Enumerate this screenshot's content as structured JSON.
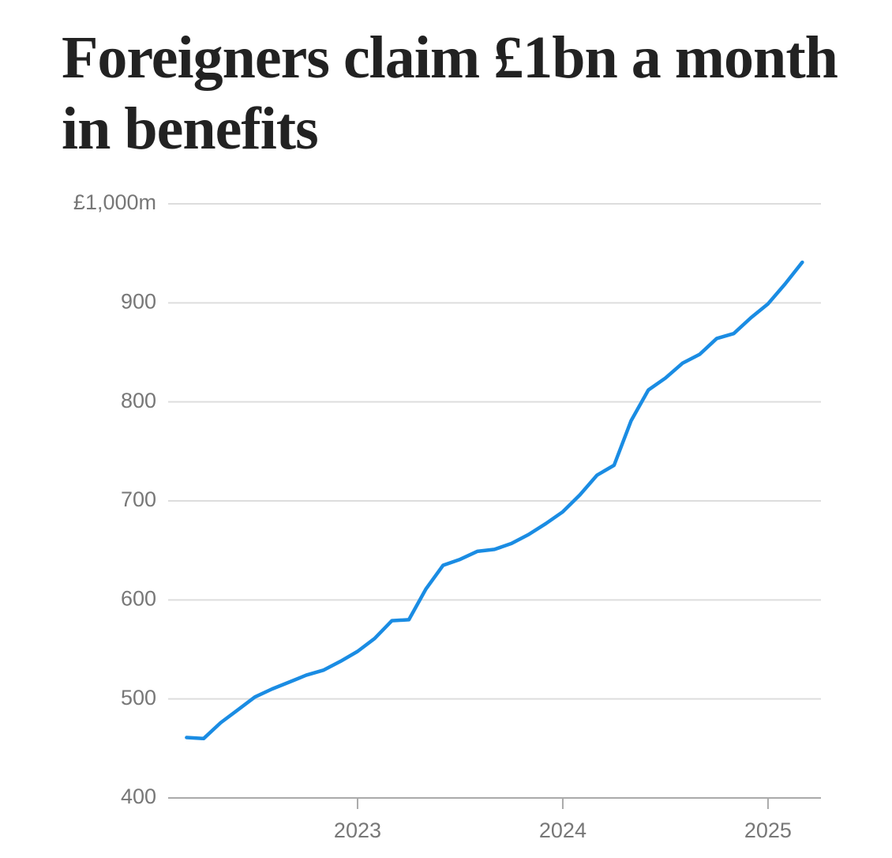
{
  "chart_data": {
    "type": "line",
    "title": "Foreigners claim £1bn a month in benefits",
    "x": [
      2022.167,
      2022.25,
      2022.333,
      2022.417,
      2022.5,
      2022.583,
      2022.667,
      2022.75,
      2022.833,
      2022.917,
      2023,
      2023.083,
      2023.167,
      2023.25,
      2023.333,
      2023.417,
      2023.5,
      2023.583,
      2023.667,
      2023.75,
      2023.833,
      2023.917,
      2024,
      2024.083,
      2024.167,
      2024.25,
      2024.333,
      2024.417,
      2024.5,
      2024.583,
      2024.667,
      2024.75,
      2024.833,
      2024.917,
      2025,
      2025.083,
      2025.167
    ],
    "values": [
      461,
      460,
      476,
      489,
      502,
      510,
      517,
      524,
      529,
      538,
      548,
      561,
      579,
      580,
      611,
      635,
      641,
      649,
      651,
      657,
      666,
      677,
      689,
      706,
      726,
      736,
      781,
      812,
      824,
      839,
      848,
      864,
      869,
      885,
      899,
      919,
      941
    ],
    "color": "#1a8ce3",
    "xlim": [
      2022.077,
      2025.258
    ],
    "xticks": [
      2023,
      2024,
      2025
    ],
    "ylim": [
      400,
      1000
    ],
    "yticks": [
      {
        "value": 1000,
        "label": "£1,000m"
      },
      900,
      800,
      700,
      600,
      500,
      400
    ],
    "grid": true
  }
}
